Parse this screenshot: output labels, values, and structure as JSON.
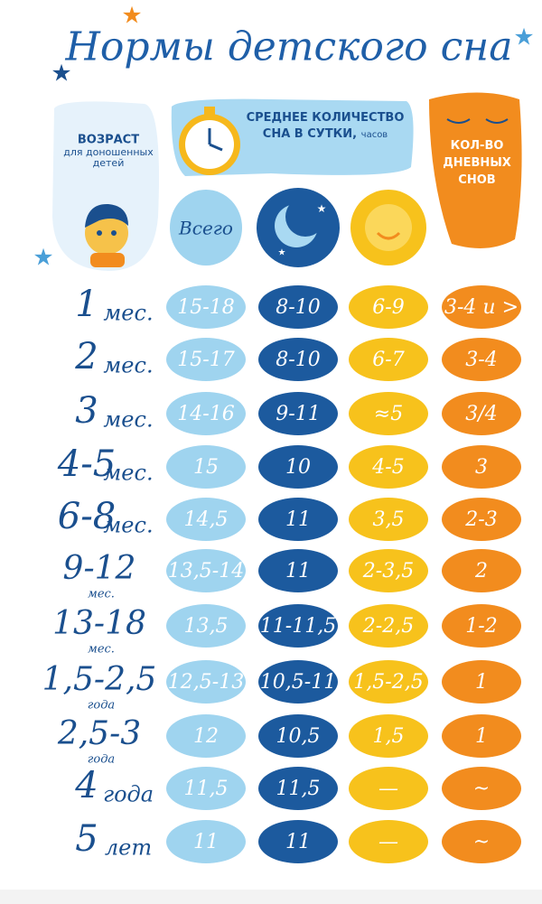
{
  "header": {
    "title": "Нормы детского сна",
    "age_title": "ВОЗРАСТ",
    "age_note": "для доношенных детей",
    "sleep_title": "СРЕДНЕЕ КОЛИЧЕСТВО СНА В СУТКИ,",
    "sleep_unit": "часов",
    "naps_title": "КОЛ-ВО ДНЕВНЫХ СНОВ",
    "total_label": "Всего"
  },
  "table": {
    "rows": [
      [
        "1",
        "мес.",
        "15-18",
        "8-10",
        "6-9",
        "3-4 и >"
      ],
      [
        "2",
        "мес.",
        "15-17",
        "8-10",
        "6-7",
        "3-4"
      ],
      [
        "3",
        "мес.",
        "14-16",
        "9-11",
        "≈5",
        "3/4"
      ],
      [
        "4-5",
        "мес.",
        "15",
        "10",
        "4-5",
        "3"
      ],
      [
        "6-8",
        "мес.",
        "14,5",
        "11",
        "3,5",
        "2-3"
      ],
      [
        "9-12",
        "мес.",
        "13,5-14",
        "11",
        "2-3,5",
        "2"
      ],
      [
        "13-18",
        "мес.",
        "13,5",
        "11-11,5",
        "2-2,5",
        "1-2"
      ],
      [
        "1,5-2,5",
        "года",
        "12,5-13",
        "10,5-11",
        "1,5-2,5",
        "1"
      ],
      [
        "2,5-3",
        "года",
        "12",
        "10,5",
        "1,5",
        "1"
      ],
      [
        "4",
        "года",
        "11,5",
        "11,5",
        "—",
        "~"
      ],
      [
        "5",
        "лет",
        "11",
        "11",
        "—",
        "~"
      ]
    ]
  }
}
